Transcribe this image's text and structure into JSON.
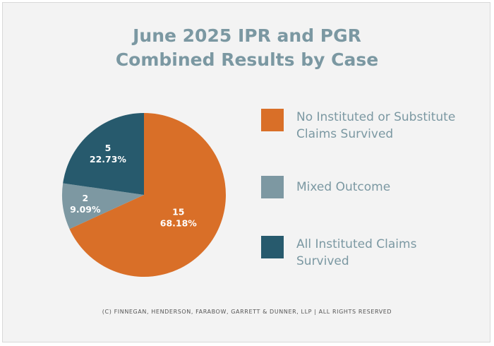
{
  "title": {
    "line1": "June 2025 IPR and PGR",
    "line2": "Combined Results by Case"
  },
  "colors": {
    "orange": "#d96f28",
    "gray_blue": "#7d98a2",
    "dark_teal": "#275a6d",
    "title": "#7b98a2"
  },
  "chart_data": {
    "type": "pie",
    "title": "June 2025 IPR and PGR Combined Results by Case",
    "start_angle_deg": 0,
    "direction": "clockwise",
    "slices": [
      {
        "label": "No Instituted or Substitute Claims Survived",
        "value": 15,
        "percent": "68.18%",
        "color": "#d96f28"
      },
      {
        "label": "Mixed Outcome",
        "value": 2,
        "percent": "9.09%",
        "color": "#7d98a2"
      },
      {
        "label": "All Instituted Claims Survived",
        "value": 5,
        "percent": "22.73%",
        "color": "#275a6d"
      }
    ],
    "legend_position": "right"
  },
  "legend": {
    "items": [
      {
        "line1": "No Instituted or Substitute",
        "line2": "Claims Survived",
        "color": "#d96f28"
      },
      {
        "line1": "Mixed Outcome",
        "line2": "",
        "color": "#7d98a2"
      },
      {
        "line1": "All Instituted Claims",
        "line2": "Survived",
        "color": "#275a6d"
      }
    ]
  },
  "footer": "(C) FINNEGAN, HENDERSON, FARABOW, GARRETT & DUNNER, LLP | ALL RIGHTS RESERVED"
}
